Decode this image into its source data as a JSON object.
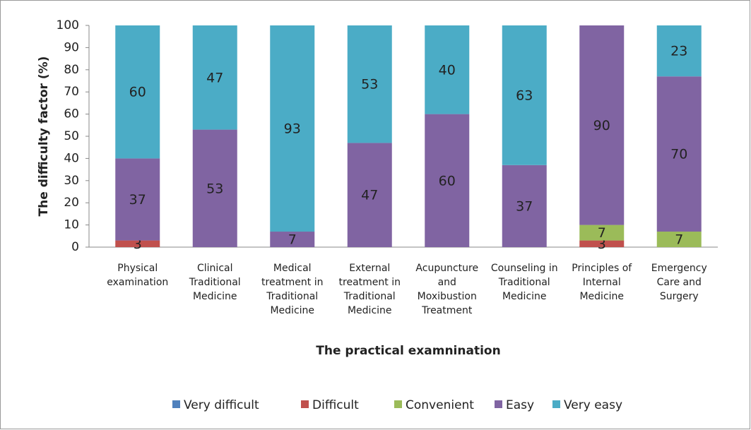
{
  "chart_data": {
    "type": "stacked_bar",
    "y_axis_label": "The difficulty factor (%)",
    "x_axis_label": "The practical examnination",
    "categories": [
      "Physical examination",
      "Clinical Traditional Medicine",
      "Medical treatment in Traditional Medicine",
      "External treatment in Traditional Medicine",
      "Acupuncture and Moxibustion Treatment",
      "Counseling in Traditional Medicine",
      "Principles of Internal Medicine",
      "Emergency Care and Surgery"
    ],
    "series": [
      {
        "name": "Very difficult",
        "color": "#4f81bd",
        "values": [
          0,
          0,
          0,
          0,
          0,
          0,
          0,
          0
        ]
      },
      {
        "name": "Difficult",
        "color": "#c0504d",
        "values": [
          3,
          0,
          0,
          0,
          0,
          0,
          3,
          0
        ]
      },
      {
        "name": "Convenient",
        "color": "#9bbb59",
        "values": [
          0,
          0,
          0,
          0,
          0,
          0,
          7,
          7
        ]
      },
      {
        "name": "Easy",
        "color": "#8064a2",
        "values": [
          37,
          53,
          7,
          47,
          60,
          37,
          90,
          70
        ]
      },
      {
        "name": "Very easy",
        "color": "#4bacc6",
        "values": [
          60,
          47,
          93,
          53,
          40,
          63,
          0,
          23
        ]
      }
    ],
    "ylim": [
      0,
      100
    ],
    "yticks": [
      0,
      10,
      20,
      30,
      40,
      50,
      60,
      70,
      80,
      90,
      100
    ],
    "grid": false,
    "legend": "bottom"
  }
}
